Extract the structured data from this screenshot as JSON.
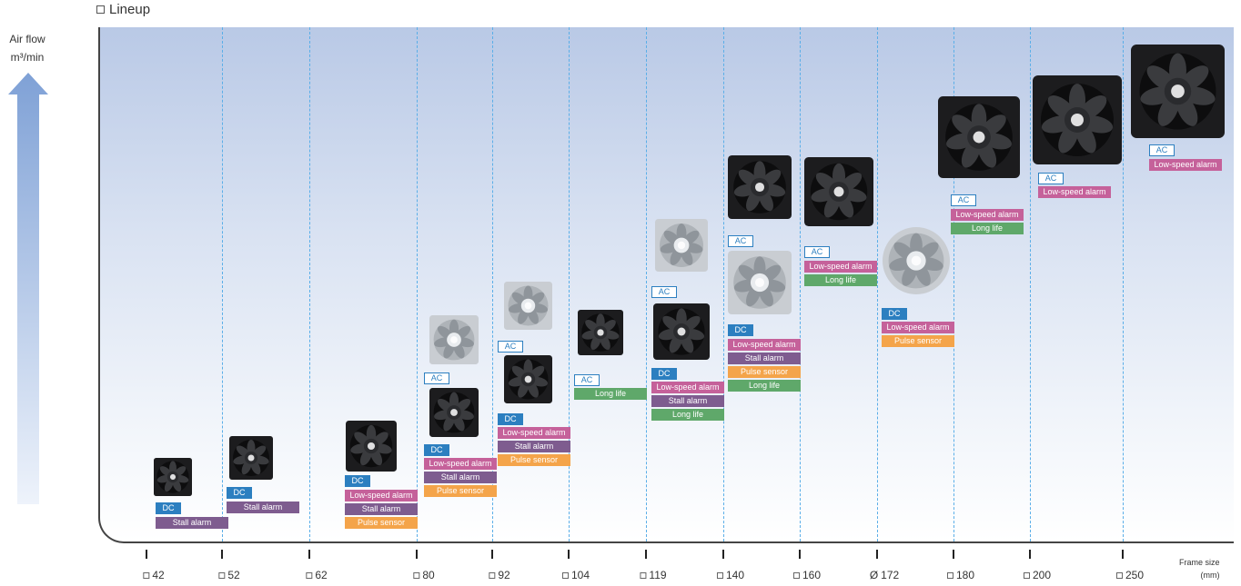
{
  "title": "Lineup",
  "y_axis": {
    "label": "Air flow",
    "unit": "m³/min"
  },
  "x_axis": {
    "label": "Frame size",
    "unit": "(mm)",
    "frames": [
      {
        "label": "42",
        "sym": "□"
      },
      {
        "label": "52",
        "sym": "□"
      },
      {
        "label": "62",
        "sym": "□"
      },
      {
        "label": "80",
        "sym": "□"
      },
      {
        "label": "92",
        "sym": "□"
      },
      {
        "label": "104",
        "sym": "□"
      },
      {
        "label": "119",
        "sym": "□"
      },
      {
        "label": "140",
        "sym": "□"
      },
      {
        "label": "160",
        "sym": "□"
      },
      {
        "label": "172",
        "sym": "Ø"
      },
      {
        "label": "180",
        "sym": "□"
      },
      {
        "label": "200",
        "sym": "□"
      },
      {
        "label": "250",
        "sym": "□"
      }
    ]
  },
  "colors": {
    "dc": "#2c7fc0",
    "low_speed_alarm": "#c5619a",
    "stall_alarm": "#7e5c8f",
    "pulse_sensor": "#f4a44a",
    "long_life": "#5fa86a"
  },
  "labels": {
    "dc": "DC",
    "ac": "AC",
    "stall_alarm": "Stall alarm",
    "low_speed_alarm": "Low-speed alarm",
    "pulse_sensor": "Pulse sensor",
    "long_life": "Long life"
  }
}
